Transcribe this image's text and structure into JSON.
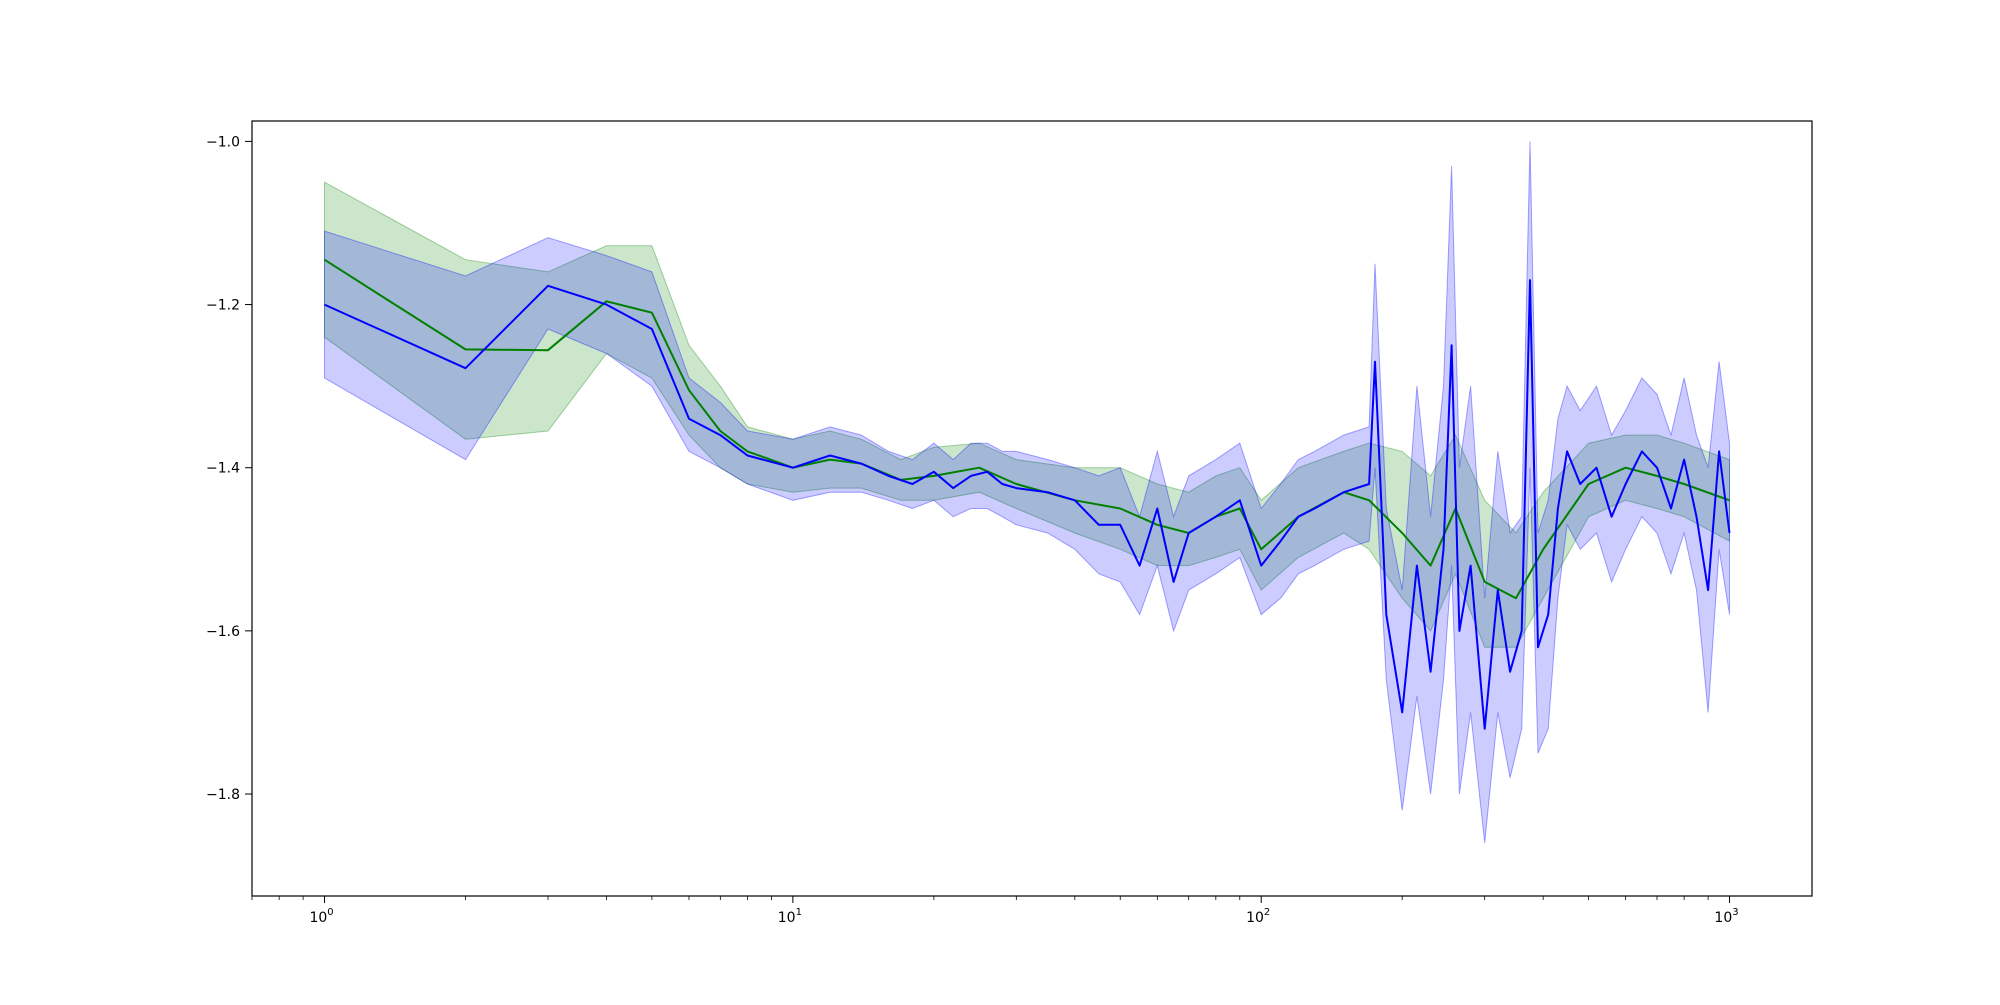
{
  "chart_data": {
    "type": "line",
    "title": "",
    "xlabel": "",
    "ylabel": "",
    "xscale": "log",
    "xlim": [
      0.7,
      1500
    ],
    "ylim": [
      -1.925,
      -0.975
    ],
    "grid": false,
    "legend": "none",
    "x_ticks": [
      {
        "value": 1,
        "base": "10",
        "exp": "0"
      },
      {
        "value": 10,
        "base": "10",
        "exp": "1"
      },
      {
        "value": 100,
        "base": "10",
        "exp": "2"
      },
      {
        "value": 1000,
        "base": "10",
        "exp": "3"
      }
    ],
    "y_ticks": [
      {
        "value": -1.0,
        "label": "−1.0"
      },
      {
        "value": -1.2,
        "label": "−1.2"
      },
      {
        "value": -1.4,
        "label": "−1.4"
      },
      {
        "value": -1.6,
        "label": "−1.6"
      },
      {
        "value": -1.8,
        "label": "−1.8"
      }
    ],
    "series": [
      {
        "color": "#008000",
        "band_color": "#008000",
        "band_opacity": 0.2,
        "x": [
          1,
          2,
          3,
          4,
          5,
          6,
          7,
          8,
          10,
          12,
          14,
          17,
          20,
          25,
          30,
          40,
          50,
          60,
          70,
          80,
          90,
          100,
          120,
          150,
          170,
          200,
          230,
          260,
          300,
          350,
          400,
          500,
          600,
          700,
          800,
          1000
        ],
        "y": [
          -1.145,
          -1.255,
          -1.256,
          -1.196,
          -1.21,
          -1.305,
          -1.355,
          -1.38,
          -1.4,
          -1.39,
          -1.395,
          -1.415,
          -1.41,
          -1.4,
          -1.42,
          -1.44,
          -1.45,
          -1.47,
          -1.48,
          -1.46,
          -1.45,
          -1.5,
          -1.46,
          -1.43,
          -1.44,
          -1.48,
          -1.52,
          -1.45,
          -1.54,
          -1.56,
          -1.5,
          -1.42,
          -1.4,
          -1.41,
          -1.42,
          -1.44
        ],
        "lower": [
          -1.24,
          -1.365,
          -1.355,
          -1.26,
          -1.29,
          -1.36,
          -1.4,
          -1.42,
          -1.43,
          -1.425,
          -1.425,
          -1.44,
          -1.44,
          -1.43,
          -1.45,
          -1.48,
          -1.5,
          -1.52,
          -1.52,
          -1.51,
          -1.5,
          -1.55,
          -1.51,
          -1.48,
          -1.5,
          -1.56,
          -1.6,
          -1.53,
          -1.62,
          -1.62,
          -1.56,
          -1.46,
          -1.44,
          -1.45,
          -1.46,
          -1.49
        ],
        "upper": [
          -1.05,
          -1.145,
          -1.16,
          -1.128,
          -1.128,
          -1.25,
          -1.3,
          -1.35,
          -1.365,
          -1.355,
          -1.365,
          -1.39,
          -1.375,
          -1.37,
          -1.39,
          -1.4,
          -1.4,
          -1.42,
          -1.43,
          -1.41,
          -1.4,
          -1.44,
          -1.4,
          -1.38,
          -1.37,
          -1.38,
          -1.41,
          -1.36,
          -1.44,
          -1.48,
          -1.43,
          -1.37,
          -1.36,
          -1.36,
          -1.37,
          -1.39
        ]
      },
      {
        "color": "#0000ff",
        "band_color": "#0000ff",
        "band_opacity": 0.2,
        "x": [
          1,
          2,
          3,
          4,
          5,
          6,
          7,
          8,
          10,
          12,
          14,
          16,
          18,
          20,
          22,
          24,
          26,
          28,
          30,
          35,
          40,
          45,
          50,
          55,
          60,
          65,
          70,
          80,
          90,
          100,
          110,
          120,
          130,
          150,
          170,
          175,
          185,
          200,
          215,
          230,
          245,
          255,
          265,
          280,
          300,
          320,
          340,
          360,
          375,
          390,
          410,
          430,
          450,
          480,
          520,
          560,
          600,
          650,
          700,
          750,
          800,
          850,
          900,
          950,
          1000
        ],
        "y": [
          -1.2,
          -1.278,
          -1.177,
          -1.2,
          -1.23,
          -1.34,
          -1.36,
          -1.385,
          -1.4,
          -1.385,
          -1.395,
          -1.41,
          -1.42,
          -1.405,
          -1.425,
          -1.41,
          -1.405,
          -1.42,
          -1.425,
          -1.43,
          -1.44,
          -1.47,
          -1.47,
          -1.52,
          -1.45,
          -1.54,
          -1.48,
          -1.46,
          -1.44,
          -1.52,
          -1.49,
          -1.46,
          -1.45,
          -1.43,
          -1.42,
          -1.27,
          -1.58,
          -1.7,
          -1.52,
          -1.65,
          -1.5,
          -1.25,
          -1.6,
          -1.52,
          -1.72,
          -1.55,
          -1.65,
          -1.6,
          -1.17,
          -1.62,
          -1.58,
          -1.45,
          -1.38,
          -1.42,
          -1.4,
          -1.46,
          -1.42,
          -1.38,
          -1.4,
          -1.45,
          -1.39,
          -1.46,
          -1.55,
          -1.38,
          -1.48
        ],
        "lower": [
          -1.29,
          -1.39,
          -1.23,
          -1.26,
          -1.3,
          -1.38,
          -1.4,
          -1.42,
          -1.44,
          -1.43,
          -1.43,
          -1.44,
          -1.45,
          -1.44,
          -1.46,
          -1.45,
          -1.45,
          -1.46,
          -1.47,
          -1.48,
          -1.5,
          -1.53,
          -1.54,
          -1.58,
          -1.52,
          -1.6,
          -1.55,
          -1.53,
          -1.51,
          -1.58,
          -1.56,
          -1.53,
          -1.52,
          -1.5,
          -1.49,
          -1.4,
          -1.66,
          -1.82,
          -1.68,
          -1.8,
          -1.66,
          -1.52,
          -1.8,
          -1.7,
          -1.86,
          -1.7,
          -1.78,
          -1.72,
          -1.4,
          -1.75,
          -1.72,
          -1.56,
          -1.47,
          -1.5,
          -1.48,
          -1.54,
          -1.5,
          -1.46,
          -1.48,
          -1.53,
          -1.48,
          -1.55,
          -1.7,
          -1.5,
          -1.58
        ],
        "upper": [
          -1.11,
          -1.165,
          -1.118,
          -1.14,
          -1.16,
          -1.29,
          -1.32,
          -1.355,
          -1.365,
          -1.35,
          -1.36,
          -1.38,
          -1.39,
          -1.37,
          -1.39,
          -1.37,
          -1.37,
          -1.38,
          -1.38,
          -1.39,
          -1.4,
          -1.41,
          -1.4,
          -1.46,
          -1.38,
          -1.46,
          -1.41,
          -1.39,
          -1.37,
          -1.45,
          -1.42,
          -1.39,
          -1.38,
          -1.36,
          -1.35,
          -1.15,
          -1.45,
          -1.55,
          -1.3,
          -1.46,
          -1.3,
          -1.03,
          -1.4,
          -1.3,
          -1.56,
          -1.38,
          -1.48,
          -1.46,
          -1.0,
          -1.48,
          -1.44,
          -1.34,
          -1.3,
          -1.33,
          -1.3,
          -1.36,
          -1.33,
          -1.29,
          -1.31,
          -1.36,
          -1.29,
          -1.36,
          -1.4,
          -1.27,
          -1.37
        ]
      }
    ]
  }
}
